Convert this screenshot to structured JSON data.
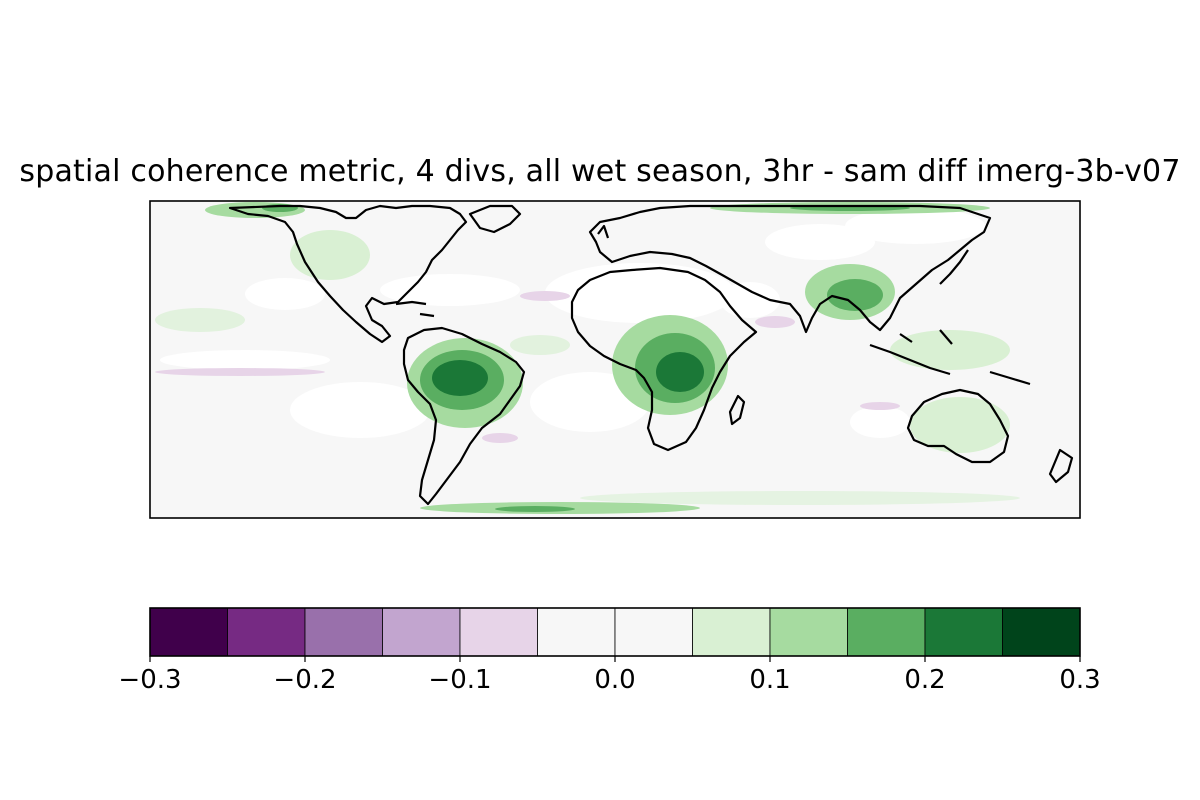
{
  "title": "spatial coherence metric, 4 divs, all wet season, 3hr - sam diff imerg-3b-v07",
  "colorbar": {
    "levels": [
      -0.3,
      -0.25,
      -0.2,
      -0.15,
      -0.1,
      -0.05,
      0.0,
      0.05,
      0.1,
      0.15,
      0.2,
      0.25,
      0.3
    ],
    "colors": [
      "#40004b",
      "#762a83",
      "#9970ab",
      "#c2a5cf",
      "#e7d4e8",
      "#f7f7f7",
      "#f7f7f7",
      "#d9f0d3",
      "#a6dba0",
      "#5aae61",
      "#1b7837",
      "#00441b"
    ],
    "tick_labels": [
      "−0.3",
      "−0.2",
      "−0.1",
      "0.0",
      "0.1",
      "0.2",
      "0.3"
    ],
    "tick_values": [
      -0.3,
      -0.2,
      -0.1,
      0.0,
      0.1,
      0.2,
      0.3
    ]
  },
  "map": {
    "projection": "plate-carree",
    "lon_range": [
      -180,
      180
    ],
    "lat_range": [
      -60,
      62
    ],
    "background_color": "#f7f7f7",
    "missing_color": "#ffffff",
    "coastline_color": "#000000"
  }
}
